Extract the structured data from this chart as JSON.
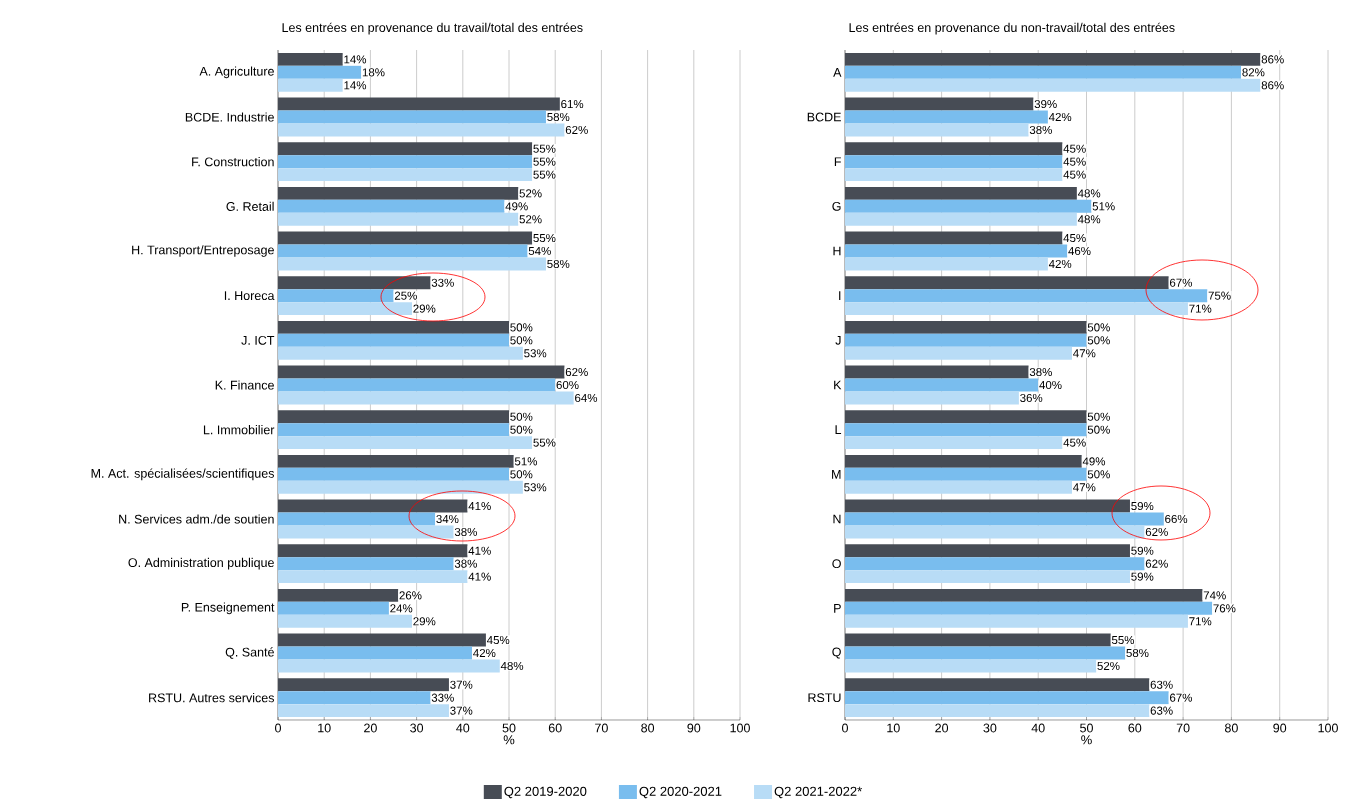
{
  "chart_data": [
    {
      "type": "bar",
      "orientation": "horizontal",
      "title": "Les entrées en provenance du travail/total des entrées",
      "xlabel": "%",
      "categories": [
        "A. Agriculture",
        "BCDE. Industrie",
        "F. Construction",
        "G. Retail",
        "H. Transport/Entreposage",
        "I. Horeca",
        "J. ICT",
        "K. Finance",
        "L. Immobilier",
        "M. Act. spécialisées/scientifiques",
        "N. Services adm./de soutien",
        "O. Administration publique",
        "P. Enseignement",
        "Q. Santé",
        "RSTU. Autres services"
      ],
      "series": [
        {
          "color": "#474c55",
          "values": [
            14,
            61,
            55,
            52,
            55,
            33,
            50,
            62,
            50,
            51,
            41,
            41,
            26,
            45,
            37
          ],
          "value_labels": [
            "14%",
            "61%",
            "55%",
            "52%",
            "55%",
            "33%",
            "50%",
            "62%",
            "50%",
            "51%",
            "41%",
            "41%",
            "26%",
            "45%",
            "37%"
          ]
        },
        {
          "color": "#79bdee",
          "values": [
            18,
            58,
            55,
            49,
            54,
            25,
            50,
            60,
            50,
            50,
            34,
            38,
            24,
            42,
            33
          ],
          "value_labels": [
            "18%",
            "58%",
            "55%",
            "49%",
            "54%",
            "25%",
            "50%",
            "60%",
            "50%",
            "50%",
            "34%",
            "38%",
            "24%",
            "42%",
            "33%"
          ]
        },
        {
          "color": "#b8dcf6",
          "values": [
            14,
            62,
            55,
            52,
            58,
            29,
            53,
            64,
            55,
            53,
            38,
            41,
            29,
            48,
            37
          ],
          "value_labels": [
            "14%",
            "62%",
            "55%",
            "52%",
            "58%",
            "29%",
            "53%",
            "64%",
            "55%",
            "53%",
            "38%",
            "41%",
            "29%",
            "48%",
            "37%"
          ]
        }
      ],
      "xlim": [
        0,
        100
      ],
      "xticks": [
        0,
        10,
        20,
        30,
        40,
        50,
        60,
        70,
        80,
        90,
        100
      ],
      "grid": "x"
    },
    {
      "type": "bar",
      "orientation": "horizontal",
      "title": "Les entrées en provenance du non-travail/total des entrées",
      "xlabel": "%",
      "categories": [
        "A",
        "BCDE",
        "F",
        "G",
        "H",
        "I",
        "J",
        "K",
        "L",
        "M",
        "N",
        "O",
        "P",
        "Q",
        "RSTU"
      ],
      "series": [
        {
          "name": "Q2 2019-2020",
          "color": "#474c55",
          "values": [
            86,
            39,
            45,
            48,
            45,
            67,
            50,
            38,
            50,
            49,
            59,
            59,
            74,
            55,
            63
          ],
          "value_labels": [
            "86%",
            "39%",
            "45%",
            "48%",
            "45%",
            "67%",
            "50%",
            "38%",
            "50%",
            "49%",
            "59%",
            "59%",
            "74%",
            "55%",
            "63%"
          ]
        },
        {
          "name": "Q2 2020-2021",
          "color": "#79bdee",
          "values": [
            82,
            42,
            45,
            51,
            46,
            75,
            50,
            40,
            50,
            50,
            66,
            62,
            76,
            58,
            67
          ],
          "value_labels": [
            "82%",
            "42%",
            "45%",
            "51%",
            "46%",
            "75%",
            "50%",
            "40%",
            "50%",
            "50%",
            "66%",
            "62%",
            "76%",
            "58%",
            "67%"
          ]
        },
        {
          "name": "Q2 2021-2022*",
          "color": "#b8dcf6",
          "values": [
            86,
            38,
            45,
            48,
            42,
            71,
            47,
            36,
            45,
            47,
            62,
            59,
            71,
            52,
            63
          ],
          "value_labels": [
            "86%",
            "38%",
            "45%",
            "48%",
            "42%",
            "71%",
            "47%",
            "36%",
            "45%",
            "47%",
            "62%",
            "59%",
            "71%",
            "52%",
            "63%"
          ]
        }
      ],
      "xlim": [
        0,
        100
      ],
      "xticks": [
        0,
        10,
        20,
        30,
        40,
        50,
        60,
        70,
        80,
        90,
        100
      ],
      "grid": "x",
      "legend": "bottom"
    }
  ]
}
